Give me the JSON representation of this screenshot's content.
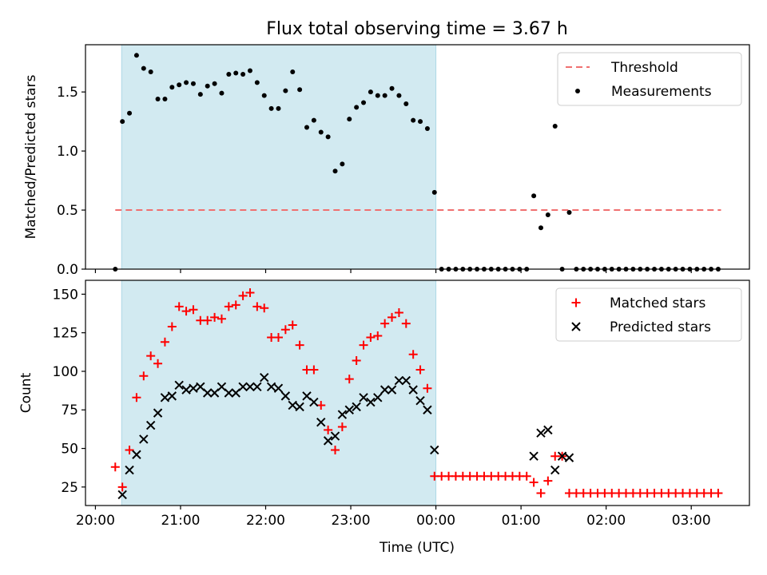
{
  "title": "Flux total observing time = 3.67 h",
  "x_axis": {
    "label": "Time (UTC)",
    "ticks": [
      {
        "value": 0,
        "label": "20:00"
      },
      {
        "value": 60,
        "label": "21:00"
      },
      {
        "value": 120,
        "label": "22:00"
      },
      {
        "value": 180,
        "label": "23:00"
      },
      {
        "value": 240,
        "label": "00:00"
      },
      {
        "value": 300,
        "label": "01:00"
      },
      {
        "value": 360,
        "label": "02:00"
      },
      {
        "value": 420,
        "label": "03:00"
      }
    ]
  },
  "colors": {
    "shade": "#add8e6",
    "threshold": "#f07070",
    "measurements": "#000000",
    "matched": "#ff0000",
    "predicted": "#000000"
  },
  "chart_data": [
    {
      "type": "scatter",
      "panel": "top",
      "ylabel": "Matched/Predicted stars",
      "xlim": [
        -7,
        461
      ],
      "ylim": [
        0,
        1.9
      ],
      "yticks": [
        {
          "value": 0.0,
          "label": "0.0"
        },
        {
          "value": 0.5,
          "label": "0.5"
        },
        {
          "value": 1.0,
          "label": "1.0"
        },
        {
          "value": 1.5,
          "label": "1.5"
        }
      ],
      "shaded_x_range": [
        18.5,
        240
      ],
      "threshold": {
        "name": "Threshold",
        "value": 0.5,
        "x_range": [
          14,
          441
        ]
      },
      "legend_position": "upper right",
      "series": [
        {
          "name": "Measurements",
          "marker": "dot",
          "x": [
            14,
            19,
            24,
            29,
            34,
            39,
            44,
            49,
            54,
            59,
            64,
            69,
            74,
            79,
            84,
            89,
            94,
            99,
            104,
            109,
            114,
            119,
            124,
            129,
            134,
            139,
            144,
            149,
            154,
            159,
            164,
            169,
            174,
            179,
            184,
            189,
            194,
            199,
            204,
            209,
            214,
            219,
            224,
            229,
            234,
            239,
            244,
            249,
            254,
            259,
            264,
            269,
            274,
            279,
            284,
            289,
            294,
            299,
            304,
            309,
            314,
            319,
            324,
            329,
            334,
            339,
            344,
            349,
            354,
            359,
            364,
            369,
            374,
            379,
            384,
            389,
            394,
            399,
            404,
            409,
            414,
            419,
            424,
            429,
            434,
            439
          ],
          "y": [
            0.0,
            1.25,
            1.32,
            1.81,
            1.7,
            1.67,
            1.44,
            1.44,
            1.54,
            1.56,
            1.58,
            1.57,
            1.48,
            1.55,
            1.57,
            1.49,
            1.65,
            1.66,
            1.65,
            1.68,
            1.58,
            1.47,
            1.36,
            1.36,
            1.51,
            1.67,
            1.52,
            1.2,
            1.26,
            1.16,
            1.12,
            0.83,
            0.89,
            1.27,
            1.37,
            1.41,
            1.5,
            1.47,
            1.47,
            1.53,
            1.47,
            1.4,
            1.26,
            1.25,
            1.19,
            0.65,
            0.0,
            0.0,
            0.0,
            0.0,
            0.0,
            0.0,
            0.0,
            0.0,
            0.0,
            0.0,
            0.0,
            0.0,
            0.0,
            0.62,
            0.35,
            0.46,
            1.21,
            0.0,
            0.48,
            0.0,
            0.0,
            0.0,
            0.0,
            0.0,
            0.0,
            0.0,
            0.0,
            0.0,
            0.0,
            0.0,
            0.0,
            0.0,
            0.0,
            0.0,
            0.0,
            0.0,
            0.0,
            0.0,
            0.0,
            0.0
          ]
        }
      ]
    },
    {
      "type": "scatter",
      "panel": "bottom",
      "ylabel": "Count",
      "xlabel": "Time (UTC)",
      "xlim": [
        -7,
        461
      ],
      "ylim": [
        13,
        159
      ],
      "yticks": [
        {
          "value": 25,
          "label": "25"
        },
        {
          "value": 50,
          "label": "50"
        },
        {
          "value": 75,
          "label": "75"
        },
        {
          "value": 100,
          "label": "100"
        },
        {
          "value": 125,
          "label": "125"
        },
        {
          "value": 150,
          "label": "150"
        }
      ],
      "shaded_x_range": [
        18.5,
        240
      ],
      "legend_position": "upper right",
      "series": [
        {
          "name": "Matched stars",
          "marker": "plus",
          "x": [
            14,
            19,
            24,
            29,
            34,
            39,
            44,
            49,
            54,
            59,
            64,
            69,
            74,
            79,
            84,
            89,
            94,
            99,
            104,
            109,
            114,
            119,
            124,
            129,
            134,
            139,
            144,
            149,
            154,
            159,
            164,
            169,
            174,
            179,
            184,
            189,
            194,
            199,
            204,
            209,
            214,
            219,
            224,
            229,
            234,
            239,
            244,
            249,
            254,
            259,
            264,
            269,
            274,
            279,
            284,
            289,
            294,
            299,
            304,
            309,
            314,
            319,
            324,
            329,
            334,
            339,
            344,
            349,
            354,
            359,
            364,
            369,
            374,
            379,
            384,
            389,
            394,
            399,
            404,
            409,
            414,
            419,
            424,
            429,
            434,
            439
          ],
          "y": [
            38,
            25,
            49,
            83,
            97,
            110,
            105,
            119,
            129,
            142,
            139,
            140,
            133,
            133,
            135,
            134,
            142,
            143,
            149,
            151,
            142,
            141,
            122,
            122,
            127,
            130,
            117,
            101,
            101,
            78,
            62,
            49,
            64,
            95,
            107,
            117,
            122,
            123,
            131,
            135,
            138,
            131,
            111,
            101,
            89,
            32,
            32,
            32,
            32,
            32,
            32,
            32,
            32,
            32,
            32,
            32,
            32,
            32,
            32,
            28,
            21,
            29,
            45,
            45,
            21,
            21,
            21,
            21,
            21,
            21,
            21,
            21,
            21,
            21,
            21,
            21,
            21,
            21,
            21,
            21,
            21,
            21,
            21,
            21,
            21,
            21
          ]
        },
        {
          "name": "Predicted stars",
          "marker": "x",
          "x": [
            19,
            24,
            29,
            34,
            39,
            44,
            49,
            54,
            59,
            64,
            69,
            74,
            79,
            84,
            89,
            94,
            99,
            104,
            109,
            114,
            119,
            124,
            129,
            134,
            139,
            144,
            149,
            154,
            159,
            164,
            169,
            174,
            179,
            184,
            189,
            194,
            199,
            204,
            209,
            214,
            219,
            224,
            229,
            234,
            239,
            309,
            314,
            319,
            324,
            329,
            334
          ],
          "y": [
            20,
            36,
            46,
            56,
            65,
            73,
            83,
            84,
            91,
            88,
            89,
            90,
            86,
            86,
            90,
            86,
            86,
            90,
            90,
            90,
            96,
            90,
            89,
            84,
            78,
            77,
            84,
            80,
            67,
            55,
            58,
            72,
            75,
            77,
            83,
            80,
            83,
            88,
            88,
            94,
            94,
            88,
            81,
            75,
            49,
            45,
            60,
            62,
            36,
            45,
            44
          ]
        }
      ]
    }
  ]
}
